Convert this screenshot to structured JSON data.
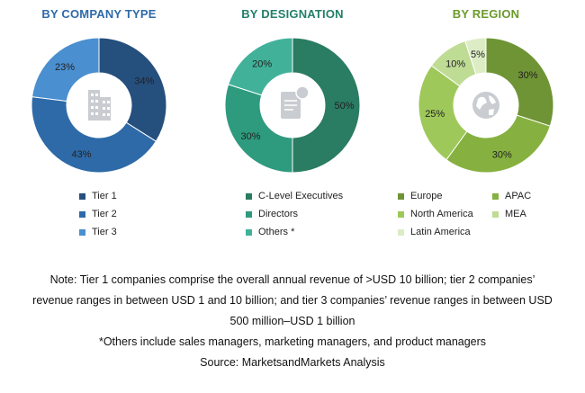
{
  "chart_data": [
    {
      "type": "pie",
      "style": "donut",
      "title": "BY COMPANY TYPE",
      "title_color": "#2e6aa8",
      "center_icon": "building-icon",
      "legend_position": "bottom",
      "slices": [
        {
          "label": "Tier 1",
          "value": 34,
          "display": "34%",
          "color": "#254f7d"
        },
        {
          "label": "Tier 2",
          "value": 43,
          "display": "43%",
          "color": "#2e6aa8"
        },
        {
          "label": "Tier 3",
          "value": 23,
          "display": "23%",
          "color": "#4a8fcf"
        }
      ]
    },
    {
      "type": "pie",
      "style": "donut",
      "title": "BY DESIGNATION",
      "title_color": "#238068",
      "center_icon": "document-user-icon",
      "legend_position": "bottom",
      "slices": [
        {
          "label": "C-Level Executives",
          "value": 50,
          "display": "50%",
          "color": "#2a7c62"
        },
        {
          "label": "Directors",
          "value": 30,
          "display": "30%",
          "color": "#2e9a7e"
        },
        {
          "label": "Others *",
          "value": 20,
          "display": "20%",
          "color": "#41b299"
        }
      ]
    },
    {
      "type": "pie",
      "style": "donut",
      "title": "BY REGION",
      "title_color": "#6b9a2b",
      "center_icon": "globe-icon",
      "legend_position": "bottom",
      "slices": [
        {
          "label": "Europe",
          "value": 30,
          "display": "30%",
          "color": "#6f9435"
        },
        {
          "label": "APAC",
          "value": 30,
          "display": "30%",
          "color": "#86b140"
        },
        {
          "label": "North America",
          "value": 25,
          "display": "25%",
          "color": "#9fc85a"
        },
        {
          "label": "MEA",
          "value": 10,
          "display": "10%",
          "color": "#bfdc95"
        },
        {
          "label": "Latin America",
          "value": 5,
          "display": "5%",
          "color": "#dcecc4"
        }
      ]
    }
  ],
  "notes": {
    "line1": "Note: Tier 1 companies comprise the overall annual revenue of >USD 10 billion; tier 2 companies’",
    "line2": "revenue ranges in between USD 1 and 10 billion; and tier 3 companies’ revenue ranges in between USD",
    "line3": "500 million–USD 1 billion",
    "line4": "*Others include sales managers, marketing managers, and product managers",
    "source": "Source: MarketsandMarkets Analysis"
  }
}
